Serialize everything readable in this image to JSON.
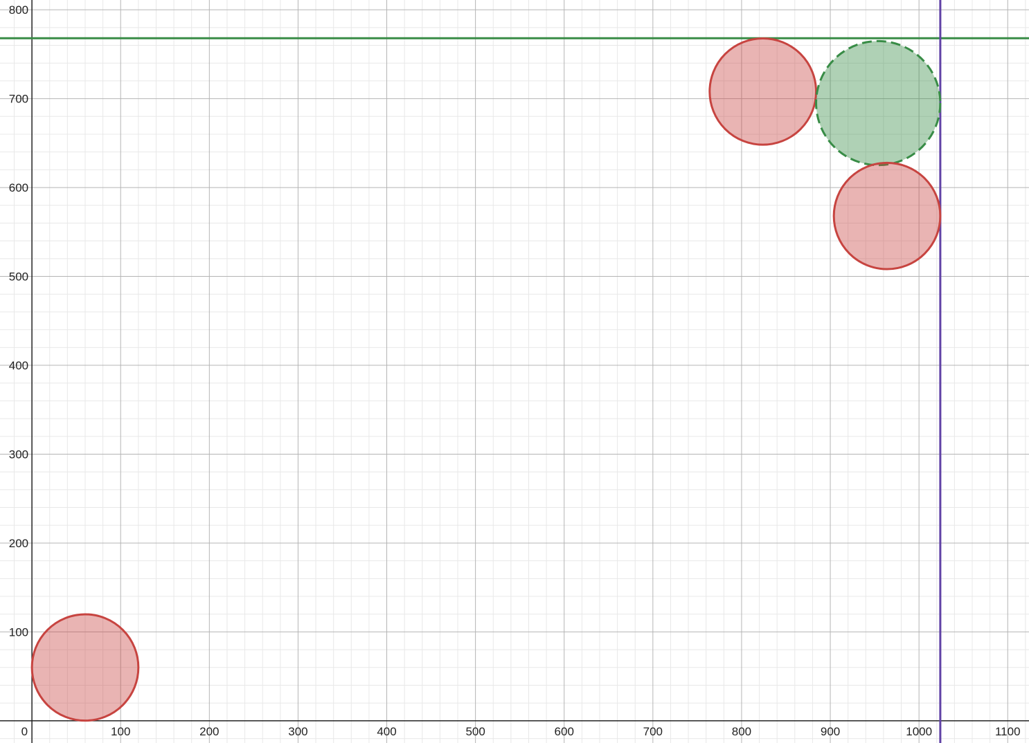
{
  "chart_data": {
    "type": "scatter",
    "title": "",
    "xlabel": "",
    "ylabel": "",
    "xlim": [
      -36,
      1124
    ],
    "ylim": [
      -25,
      811
    ],
    "grid": true,
    "x_ticks": [
      0,
      100,
      200,
      300,
      400,
      500,
      600,
      700,
      800,
      900,
      1000,
      1100
    ],
    "y_ticks": [
      100,
      200,
      300,
      400,
      500,
      600,
      700,
      800
    ],
    "x_tick_labels": [
      "0",
      "100",
      "200",
      "300",
      "400",
      "500",
      "600",
      "700",
      "800",
      "900",
      "1000",
      "1100"
    ],
    "y_tick_labels": [
      "100",
      "200",
      "300",
      "400",
      "500",
      "600",
      "700",
      "800"
    ],
    "circles": [
      {
        "cx": 60,
        "cy": 60,
        "r": 60,
        "color": "#c74440",
        "dashed": false
      },
      {
        "cx": 824,
        "cy": 708,
        "r": 60,
        "color": "#c74440",
        "dashed": false
      },
      {
        "cx": 954,
        "cy": 695,
        "r": 70,
        "color": "#388c46",
        "dashed": true
      },
      {
        "cx": 964,
        "cy": 568,
        "r": 60,
        "color": "#c74440",
        "dashed": false
      }
    ],
    "horizontal_lines": [
      {
        "y": 768,
        "color": "#388c46"
      }
    ],
    "vertical_lines": [
      {
        "x": 1024,
        "color": "#6042a6"
      }
    ]
  }
}
